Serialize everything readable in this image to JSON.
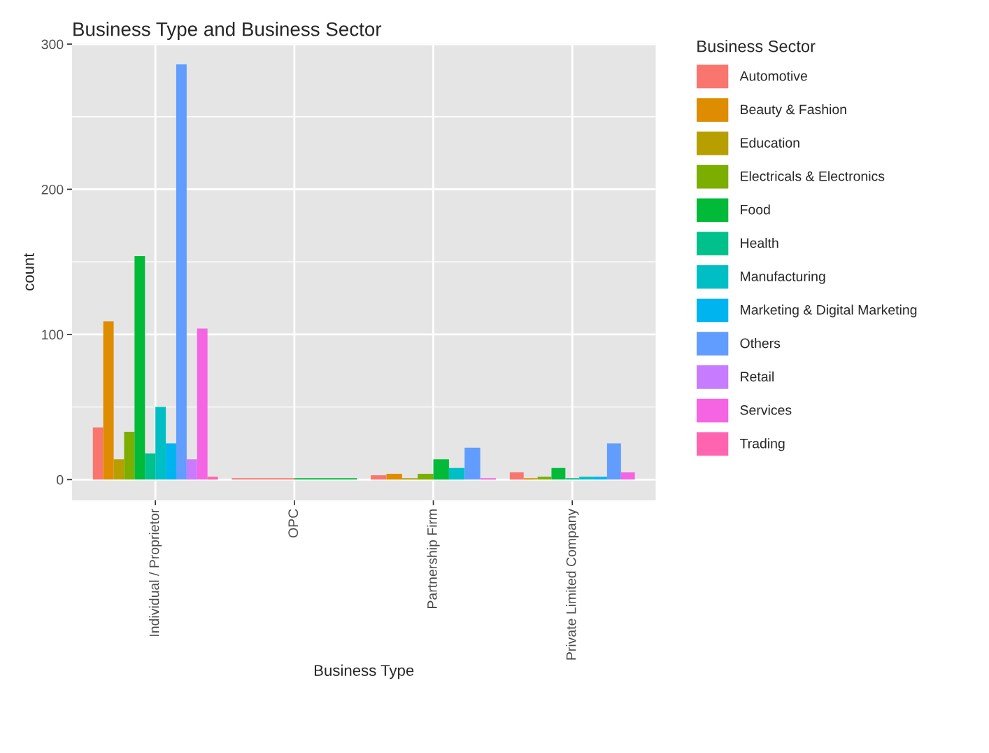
{
  "chart_data": {
    "type": "bar",
    "title": "Business Type and Business Sector",
    "xlabel": "Business Type",
    "ylabel": "count",
    "legend_title": "Business Sector",
    "categories": [
      "Individual / Proprietor",
      "OPC",
      "Partnership Firm",
      "Private Limited Company"
    ],
    "series": [
      {
        "name": "Automotive",
        "color": "#f8766d",
        "values": [
          36,
          1,
          3,
          5
        ]
      },
      {
        "name": "Beauty & Fashion",
        "color": "#de8c00",
        "values": [
          109,
          null,
          4,
          1
        ]
      },
      {
        "name": "Education",
        "color": "#b79f00",
        "values": [
          14,
          null,
          1,
          null
        ]
      },
      {
        "name": "Electricals & Electronics",
        "color": "#7cae00",
        "values": [
          33,
          null,
          4,
          2
        ]
      },
      {
        "name": "Food",
        "color": "#00ba38",
        "values": [
          154,
          1,
          14,
          8
        ]
      },
      {
        "name": "Health",
        "color": "#00c08b",
        "values": [
          18,
          null,
          null,
          1
        ]
      },
      {
        "name": "Manufacturing",
        "color": "#00bfc4",
        "values": [
          50,
          null,
          8,
          2
        ]
      },
      {
        "name": "Marketing & Digital Marketing",
        "color": "#00b4f0",
        "values": [
          25,
          null,
          null,
          2
        ]
      },
      {
        "name": "Others",
        "color": "#619cff",
        "values": [
          286,
          null,
          22,
          25
        ]
      },
      {
        "name": "Retail",
        "color": "#c77cff",
        "values": [
          14,
          null,
          null,
          null
        ]
      },
      {
        "name": "Services",
        "color": "#f564e3",
        "values": [
          104,
          null,
          1,
          5
        ]
      },
      {
        "name": "Trading",
        "color": "#ff64b0",
        "values": [
          2,
          null,
          null,
          null
        ]
      }
    ],
    "ylim": [
      -14.3,
      300.3
    ],
    "yticks": [
      0,
      100,
      200,
      300
    ],
    "grid": true,
    "legend": "right"
  }
}
